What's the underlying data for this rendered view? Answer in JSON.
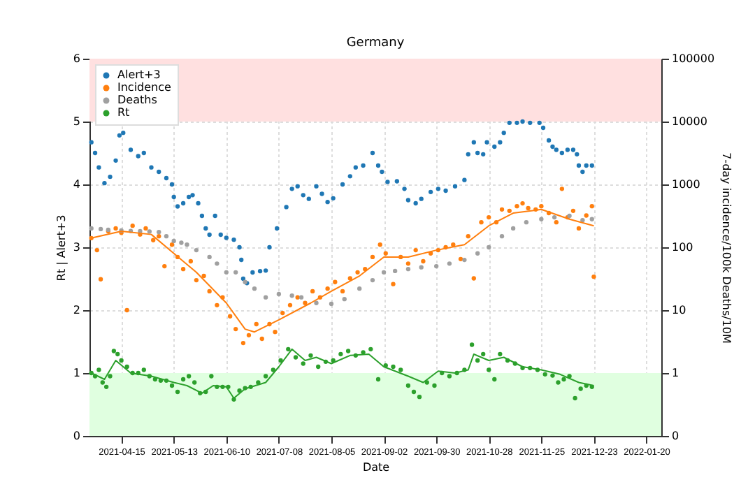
{
  "chart_data": {
    "type": "scatter",
    "title": "Germany",
    "xlabel": "Date",
    "ylabel": "Rt | Alert+3",
    "y2label": "7-day incidence/100k Deaths/10M",
    "xlim": [
      "2021-03-29",
      "2022-01-28"
    ],
    "xticks": [
      "2021-04-15",
      "2021-05-13",
      "2021-06-10",
      "2021-07-08",
      "2021-08-05",
      "2021-09-02",
      "2021-09-30",
      "2021-10-28",
      "2021-11-25",
      "2021-12-23",
      "2022-01-20"
    ],
    "ylim": [
      0,
      6
    ],
    "yticks": [
      0,
      1,
      2,
      3,
      4,
      5,
      6
    ],
    "log": "y2",
    "y2lim": [
      0.1,
      100000
    ],
    "y2ticks": [
      {
        "value": 0.1,
        "label": "0"
      },
      1,
      10,
      100,
      1000,
      10000,
      100000
    ],
    "grid": true,
    "legend": "top left",
    "marker": "circle",
    "bands": [
      {
        "axis": "y",
        "from": 5,
        "to": 6,
        "color": "#ffe0e0"
      },
      {
        "axis": "y",
        "from": 0,
        "to": 1,
        "color": "#e0ffe0"
      }
    ],
    "series": [
      {
        "name": "Alert+3",
        "color": "#1f77b4",
        "x": [
          "2021-03-30",
          "2021-04-01",
          "2021-04-03",
          "2021-04-06",
          "2021-04-09",
          "2021-04-12",
          "2021-04-14",
          "2021-04-16",
          "2021-04-20",
          "2021-04-24",
          "2021-04-27",
          "2021-05-01",
          "2021-05-05",
          "2021-05-09",
          "2021-05-12",
          "2021-05-13",
          "2021-05-15",
          "2021-05-18",
          "2021-05-21",
          "2021-05-23",
          "2021-05-26",
          "2021-05-28",
          "2021-05-30",
          "2021-06-01",
          "2021-06-04",
          "2021-06-07",
          "2021-06-10",
          "2021-06-14",
          "2021-06-17",
          "2021-06-18",
          "2021-06-19",
          "2021-06-21",
          "2021-06-24",
          "2021-06-28",
          "2021-07-01",
          "2021-07-03",
          "2021-07-07",
          "2021-07-12",
          "2021-07-15",
          "2021-07-18",
          "2021-07-21",
          "2021-07-24",
          "2021-07-28",
          "2021-07-31",
          "2021-08-03",
          "2021-08-06",
          "2021-08-11",
          "2021-08-15",
          "2021-08-18",
          "2021-08-22",
          "2021-08-27",
          "2021-08-30",
          "2021-09-01",
          "2021-09-04",
          "2021-09-09",
          "2021-09-13",
          "2021-09-15",
          "2021-09-19",
          "2021-09-22",
          "2021-09-27",
          "2021-10-01",
          "2021-10-05",
          "2021-10-10",
          "2021-10-15",
          "2021-10-17",
          "2021-10-20",
          "2021-10-22",
          "2021-10-25",
          "2021-10-27",
          "2021-10-31",
          "2021-11-03",
          "2021-11-05",
          "2021-11-08",
          "2021-11-12",
          "2021-11-15",
          "2021-11-19",
          "2021-11-24",
          "2021-11-26",
          "2021-11-29",
          "2021-12-01",
          "2021-12-03",
          "2021-12-06",
          "2021-12-09",
          "2021-12-12",
          "2021-12-14",
          "2021-12-15",
          "2021-12-17",
          "2021-12-19",
          "2021-12-22"
        ],
        "values": [
          4.67,
          4.5,
          4.27,
          4.02,
          4.12,
          4.38,
          4.78,
          4.82,
          4.55,
          4.45,
          4.5,
          4.27,
          4.2,
          4.1,
          4.0,
          3.8,
          3.65,
          3.7,
          3.8,
          3.83,
          3.7,
          3.5,
          3.3,
          3.2,
          3.5,
          3.2,
          3.15,
          3.12,
          3.0,
          2.8,
          2.5,
          2.43,
          2.6,
          2.62,
          2.63,
          3.0,
          3.3,
          3.64,
          3.93,
          3.97,
          3.83,
          3.77,
          3.97,
          3.85,
          3.72,
          3.78,
          4.0,
          4.13,
          4.27,
          4.3,
          4.5,
          4.3,
          4.2,
          4.04,
          4.05,
          3.93,
          3.75,
          3.7,
          3.77,
          3.88,
          3.93,
          3.9,
          3.97,
          4.07,
          4.48,
          4.67,
          4.5,
          4.48,
          4.67,
          4.6,
          4.67,
          4.82,
          4.98,
          4.98,
          5.0,
          4.98,
          4.98,
          4.9,
          4.7,
          4.6,
          4.55,
          4.5,
          4.55,
          4.55,
          4.48,
          4.3,
          4.2,
          4.3,
          4.3
        ]
      },
      {
        "name": "Incidence",
        "axis": "y2",
        "color": "#ff7f0e",
        "x": [
          "2021-03-30",
          "2021-04-02",
          "2021-04-04",
          "2021-04-08",
          "2021-04-12",
          "2021-04-15",
          "2021-04-18",
          "2021-04-21",
          "2021-04-25",
          "2021-04-28",
          "2021-05-02",
          "2021-05-05",
          "2021-05-08",
          "2021-05-12",
          "2021-05-15",
          "2021-05-18",
          "2021-05-22",
          "2021-05-25",
          "2021-05-29",
          "2021-06-01",
          "2021-06-05",
          "2021-06-08",
          "2021-06-12",
          "2021-06-15",
          "2021-06-19",
          "2021-06-22",
          "2021-06-26",
          "2021-06-29",
          "2021-07-03",
          "2021-07-06",
          "2021-07-10",
          "2021-07-14",
          "2021-07-18",
          "2021-07-22",
          "2021-07-26",
          "2021-07-30",
          "2021-08-03",
          "2021-08-07",
          "2021-08-11",
          "2021-08-15",
          "2021-08-19",
          "2021-08-23",
          "2021-08-27",
          "2021-08-31",
          "2021-09-03",
          "2021-09-07",
          "2021-09-11",
          "2021-09-15",
          "2021-09-19",
          "2021-09-23",
          "2021-09-27",
          "2021-10-01",
          "2021-10-05",
          "2021-10-09",
          "2021-10-13",
          "2021-10-17",
          "2021-10-20",
          "2021-10-24",
          "2021-10-28",
          "2021-11-01",
          "2021-11-04",
          "2021-11-08",
          "2021-11-12",
          "2021-11-15",
          "2021-11-18",
          "2021-11-22",
          "2021-11-25",
          "2021-11-29",
          "2021-12-03",
          "2021-12-06",
          "2021-12-09",
          "2021-12-12",
          "2021-12-15",
          "2021-12-19",
          "2021-12-22",
          "2021-12-23"
        ],
        "values": [
          140,
          90,
          31,
          180,
          200,
          170,
          10,
          220,
          160,
          200,
          130,
          150,
          50,
          110,
          70,
          45,
          60,
          30,
          35,
          20,
          12,
          16,
          8,
          5,
          3,
          4,
          6,
          3.5,
          6,
          4.5,
          9,
          12,
          16,
          13,
          20,
          16,
          22,
          28,
          20,
          32,
          40,
          45,
          70,
          110,
          80,
          26,
          70,
          55,
          90,
          60,
          80,
          90,
          100,
          110,
          65,
          150,
          32,
          250,
          300,
          250,
          400,
          380,
          450,
          500,
          420,
          400,
          450,
          350,
          250,
          850,
          300,
          380,
          200,
          320,
          450,
          34
        ]
      },
      {
        "name": "Deaths",
        "axis": "y2",
        "color": "#a0a0a0",
        "x": [
          "2021-03-30",
          "2021-04-04",
          "2021-04-08",
          "2021-04-15",
          "2021-04-20",
          "2021-04-25",
          "2021-04-30",
          "2021-05-05",
          "2021-05-09",
          "2021-05-13",
          "2021-05-17",
          "2021-05-20",
          "2021-05-25",
          "2021-06-01",
          "2021-06-05",
          "2021-06-10",
          "2021-06-15",
          "2021-06-20",
          "2021-06-25",
          "2021-07-01",
          "2021-07-08",
          "2021-07-15",
          "2021-07-20",
          "2021-07-28",
          "2021-08-05",
          "2021-08-12",
          "2021-08-20",
          "2021-08-27",
          "2021-09-02",
          "2021-09-08",
          "2021-09-15",
          "2021-09-22",
          "2021-09-30",
          "2021-10-07",
          "2021-10-15",
          "2021-10-22",
          "2021-10-28",
          "2021-11-04",
          "2021-11-10",
          "2021-11-17",
          "2021-11-25",
          "2021-12-02",
          "2021-12-10",
          "2021-12-17",
          "2021-12-22"
        ],
        "values": [
          200,
          195,
          190,
          185,
          182,
          180,
          178,
          175,
          150,
          126,
          118,
          110,
          90,
          70,
          55,
          40,
          40,
          28,
          22,
          16,
          18,
          17,
          16,
          13,
          12.6,
          15,
          22,
          30,
          40,
          42,
          45,
          48,
          50,
          55,
          63,
          80,
          100,
          150,
          200,
          250,
          280,
          300,
          316,
          270,
          280
        ]
      },
      {
        "name": "Rt",
        "color": "#2ca02c",
        "x": [
          "2021-03-30",
          "2021-04-01",
          "2021-04-03",
          "2021-04-05",
          "2021-04-07",
          "2021-04-09",
          "2021-04-11",
          "2021-04-13",
          "2021-04-15",
          "2021-04-18",
          "2021-04-21",
          "2021-04-24",
          "2021-04-27",
          "2021-04-30",
          "2021-05-03",
          "2021-05-06",
          "2021-05-09",
          "2021-05-12",
          "2021-05-15",
          "2021-05-18",
          "2021-05-21",
          "2021-05-24",
          "2021-05-27",
          "2021-05-30",
          "2021-06-02",
          "2021-06-05",
          "2021-06-08",
          "2021-06-11",
          "2021-06-14",
          "2021-06-17",
          "2021-06-20",
          "2021-06-23",
          "2021-06-27",
          "2021-07-01",
          "2021-07-05",
          "2021-07-09",
          "2021-07-13",
          "2021-07-17",
          "2021-07-21",
          "2021-07-25",
          "2021-07-29",
          "2021-08-02",
          "2021-08-06",
          "2021-08-10",
          "2021-08-14",
          "2021-08-18",
          "2021-08-22",
          "2021-08-26",
          "2021-08-30",
          "2021-09-03",
          "2021-09-07",
          "2021-09-11",
          "2021-09-15",
          "2021-09-18",
          "2021-09-21",
          "2021-09-25",
          "2021-09-29",
          "2021-10-03",
          "2021-10-07",
          "2021-10-11",
          "2021-10-15",
          "2021-10-19",
          "2021-10-22",
          "2021-10-25",
          "2021-10-28",
          "2021-10-31",
          "2021-11-03",
          "2021-11-07",
          "2021-11-11",
          "2021-11-15",
          "2021-11-19",
          "2021-11-23",
          "2021-11-27",
          "2021-12-01",
          "2021-12-04",
          "2021-12-07",
          "2021-12-10",
          "2021-12-13",
          "2021-12-16",
          "2021-12-19",
          "2021-12-22"
        ],
        "values": [
          1.0,
          0.95,
          1.05,
          0.85,
          0.78,
          0.95,
          1.35,
          1.3,
          1.2,
          1.1,
          1.0,
          1.0,
          1.05,
          0.95,
          0.9,
          0.88,
          0.88,
          0.8,
          0.7,
          0.9,
          0.95,
          0.85,
          0.68,
          0.7,
          0.95,
          0.78,
          0.78,
          0.78,
          0.58,
          0.72,
          0.76,
          0.78,
          0.85,
          0.95,
          1.05,
          1.2,
          1.38,
          1.25,
          1.15,
          1.28,
          1.1,
          1.18,
          1.2,
          1.3,
          1.35,
          1.28,
          1.33,
          1.38,
          0.9,
          1.12,
          1.1,
          1.05,
          0.8,
          0.7,
          0.62,
          0.85,
          0.8,
          1.0,
          0.95,
          1.0,
          1.05,
          1.45,
          1.2,
          1.3,
          1.05,
          0.9,
          1.3,
          1.2,
          1.15,
          1.08,
          1.08,
          1.05,
          0.98,
          0.96,
          0.85,
          0.9,
          0.95,
          0.6,
          0.75,
          0.8,
          0.78
        ]
      },
      {
        "type": "line",
        "marker": "none",
        "axis": "y2",
        "color": "#ff7f0e",
        "x": [
          "2021-03-30",
          "2021-04-15",
          "2021-05-01",
          "2021-05-13",
          "2021-05-25",
          "2021-06-10",
          "2021-06-20",
          "2021-06-25",
          "2021-07-08",
          "2021-07-25",
          "2021-08-05",
          "2021-08-20",
          "2021-09-02",
          "2021-09-15",
          "2021-09-30",
          "2021-10-15",
          "2021-10-28",
          "2021-11-10",
          "2021-11-25",
          "2021-12-10",
          "2021-12-23"
        ],
        "values": [
          140,
          180,
          160,
          80,
          40,
          13,
          5,
          4.5,
          7,
          13,
          20,
          35,
          70,
          70,
          90,
          110,
          220,
          350,
          400,
          280,
          220
        ]
      },
      {
        "type": "line",
        "marker": "none",
        "color": "#2ca02c",
        "x": [
          "2021-03-30",
          "2021-04-06",
          "2021-04-12",
          "2021-04-20",
          "2021-05-01",
          "2021-05-13",
          "2021-05-20",
          "2021-05-28",
          "2021-06-03",
          "2021-06-10",
          "2021-06-14",
          "2021-06-20",
          "2021-07-01",
          "2021-07-08",
          "2021-07-15",
          "2021-07-22",
          "2021-07-28",
          "2021-08-05",
          "2021-08-15",
          "2021-08-25",
          "2021-09-02",
          "2021-09-15",
          "2021-09-23",
          "2021-10-01",
          "2021-10-10",
          "2021-10-17",
          "2021-10-20",
          "2021-10-28",
          "2021-11-05",
          "2021-11-15",
          "2021-11-25",
          "2021-12-05",
          "2021-12-15",
          "2021-12-23"
        ],
        "values": [
          1.0,
          0.9,
          1.2,
          1.0,
          0.95,
          0.85,
          0.8,
          0.68,
          0.8,
          0.78,
          0.6,
          0.75,
          0.85,
          1.1,
          1.38,
          1.2,
          1.25,
          1.15,
          1.28,
          1.3,
          1.1,
          0.95,
          0.85,
          1.03,
          1.0,
          1.05,
          1.3,
          1.2,
          1.25,
          1.1,
          1.05,
          0.98,
          0.85,
          0.8
        ]
      }
    ]
  }
}
